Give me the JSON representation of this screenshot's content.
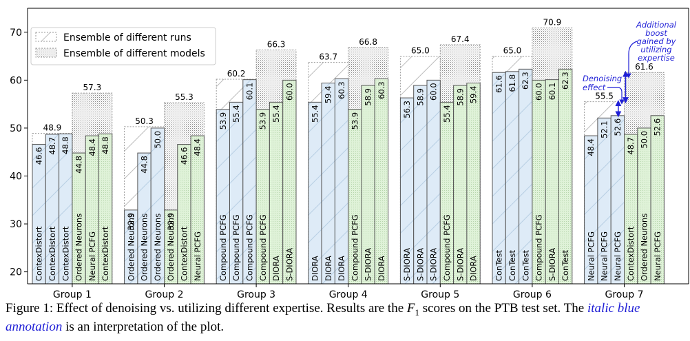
{
  "chart_data": {
    "type": "bar",
    "ylim": [
      17.5,
      75
    ],
    "yticks": [
      20,
      30,
      40,
      50,
      60,
      70
    ],
    "grid": false,
    "legend": {
      "placement": "top-left",
      "entries": [
        "Ensemble of different runs",
        "Ensemble of different models"
      ]
    },
    "colors": {
      "runs_fill": "#deebf7",
      "models_fill": "#dff2d8",
      "edge": "#555555",
      "annotation": "#1f1fd6"
    },
    "groups": [
      {
        "name": "Group 1",
        "runs_ensemble": 48.9,
        "models_ensemble": 57.3,
        "runs": [
          {
            "label": "ContexDistort",
            "value": 46.6
          },
          {
            "label": "ContexDistort",
            "value": 48.7
          },
          {
            "label": "ContexDistort",
            "value": 48.8
          }
        ],
        "models": [
          {
            "label": "Ordered Neurons",
            "value": 44.8
          },
          {
            "label": "Neural PCFG",
            "value": 48.4
          },
          {
            "label": "ContexDistort",
            "value": 48.8
          }
        ]
      },
      {
        "name": "Group 2",
        "runs_ensemble": 50.3,
        "models_ensemble": 55.3,
        "runs": [
          {
            "label": "Ordered Neurons",
            "value": 32.9
          },
          {
            "label": "Ordered Neurons",
            "value": 44.8
          },
          {
            "label": "Ordered Neurons",
            "value": 50.0
          }
        ],
        "models": [
          {
            "label": "Ordered Neurons",
            "value": 32.9
          },
          {
            "label": "ContexDistort",
            "value": 46.6
          },
          {
            "label": "Neural PCFG",
            "value": 48.4
          }
        ]
      },
      {
        "name": "Group 3",
        "runs_ensemble": 60.2,
        "models_ensemble": 66.3,
        "runs": [
          {
            "label": "Compound PCFG",
            "value": 53.9
          },
          {
            "label": "Compound PCFG",
            "value": 55.4
          },
          {
            "label": "Compound PCFG",
            "value": 60.1
          }
        ],
        "models": [
          {
            "label": "Compound PCFG",
            "value": 53.9
          },
          {
            "label": "DIORA",
            "value": 55.4
          },
          {
            "label": "S-DIORA",
            "value": 60.0
          }
        ]
      },
      {
        "name": "Group 4",
        "runs_ensemble": 63.7,
        "models_ensemble": 66.8,
        "runs": [
          {
            "label": "DIORA",
            "value": 55.4
          },
          {
            "label": "DIORA",
            "value": 59.4
          },
          {
            "label": "DIORA",
            "value": 60.3
          }
        ],
        "models": [
          {
            "label": "Compound PCFG",
            "value": 53.9
          },
          {
            "label": "S-DIORA",
            "value": 58.9
          },
          {
            "label": "DIORA",
            "value": 60.3
          }
        ]
      },
      {
        "name": "Group 5",
        "runs_ensemble": 65.0,
        "models_ensemble": 67.4,
        "runs": [
          {
            "label": "S-DIORA",
            "value": 56.3
          },
          {
            "label": "S-DIORA",
            "value": 58.9
          },
          {
            "label": "S-DIORA",
            "value": 60.0
          }
        ],
        "models": [
          {
            "label": "Compound PCFG",
            "value": 55.4
          },
          {
            "label": "S-DIORA",
            "value": 58.9
          },
          {
            "label": "DIORA",
            "value": 59.4
          }
        ]
      },
      {
        "name": "Group 6",
        "runs_ensemble": 65.0,
        "models_ensemble": 70.9,
        "runs": [
          {
            "label": "ConTest",
            "value": 61.6
          },
          {
            "label": "ConTest",
            "value": 61.8
          },
          {
            "label": "ConTest",
            "value": 62.3
          }
        ],
        "models": [
          {
            "label": "Compound PCFG",
            "value": 60.0
          },
          {
            "label": "S-DIORA",
            "value": 60.1
          },
          {
            "label": "ConTest",
            "value": 62.3
          }
        ]
      },
      {
        "name": "Group 7",
        "runs_ensemble": 55.5,
        "models_ensemble": 61.6,
        "runs": [
          {
            "label": "Neural PCFG",
            "value": 48.4
          },
          {
            "label": "Neural PCFG",
            "value": 52.1
          },
          {
            "label": "Neural PCFG",
            "value": 52.6
          }
        ],
        "models": [
          {
            "label": "ContexDistort",
            "value": 48.7
          },
          {
            "label": "Ordered Neurons",
            "value": 50.0
          },
          {
            "label": "Neural PCFG",
            "value": 52.6
          }
        ]
      }
    ],
    "annotations": {
      "denoising": "Denoising effect",
      "boost": "Additional boost gained by utilizing expertise"
    }
  },
  "caption": {
    "prefix": "Figure 1: Effect of denoising vs. utilizing different expertise. Results are the ",
    "math": "F",
    "math_sub": "1",
    "middle": " scores on the PTB test set. The ",
    "blue": "italic blue annotation",
    "suffix": " is an interpretation of the plot."
  }
}
